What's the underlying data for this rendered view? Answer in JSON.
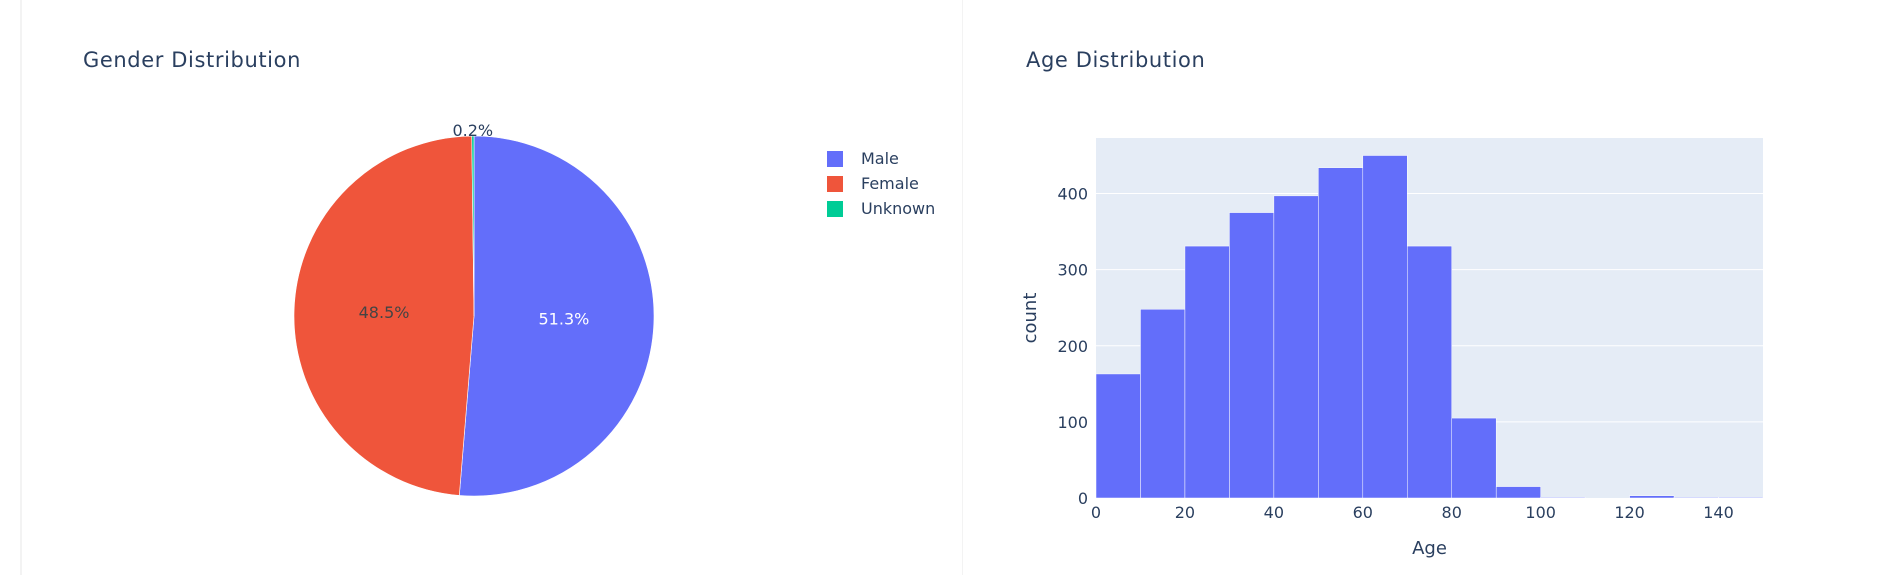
{
  "colors": {
    "male": "#636efa",
    "female": "#ef553b",
    "unknown": "#00cc96",
    "plot_bg": "#e5ecf6",
    "text": "#2a3f5f"
  },
  "chart_data": [
    {
      "type": "pie",
      "title": "Gender Distribution",
      "labels": [
        "Male",
        "Female",
        "Unknown"
      ],
      "values": [
        51.3,
        48.5,
        0.2
      ],
      "text_labels": [
        "51.3%",
        "48.5%",
        "0.2%"
      ],
      "colors": [
        "#636efa",
        "#ef553b",
        "#00cc96"
      ],
      "legend": {
        "position": "right",
        "entries": [
          "Male",
          "Female",
          "Unknown"
        ]
      }
    },
    {
      "type": "bar",
      "subtype": "histogram",
      "title": "Age Distribution",
      "xlabel": "Age",
      "ylabel": "count",
      "bin_edges": [
        0,
        10,
        20,
        30,
        40,
        50,
        60,
        70,
        80,
        90,
        100,
        110,
        120,
        130,
        140,
        150
      ],
      "values": [
        163,
        248,
        331,
        375,
        397,
        434,
        450,
        331,
        105,
        15,
        1,
        0,
        3,
        1,
        1
      ],
      "xlim": [
        0,
        150
      ],
      "ylim": [
        0,
        473
      ],
      "xticks": [
        0,
        20,
        40,
        60,
        80,
        100,
        120,
        140
      ],
      "yticks": [
        0,
        100,
        200,
        300,
        400
      ],
      "grid": true,
      "color": "#636efa"
    }
  ]
}
